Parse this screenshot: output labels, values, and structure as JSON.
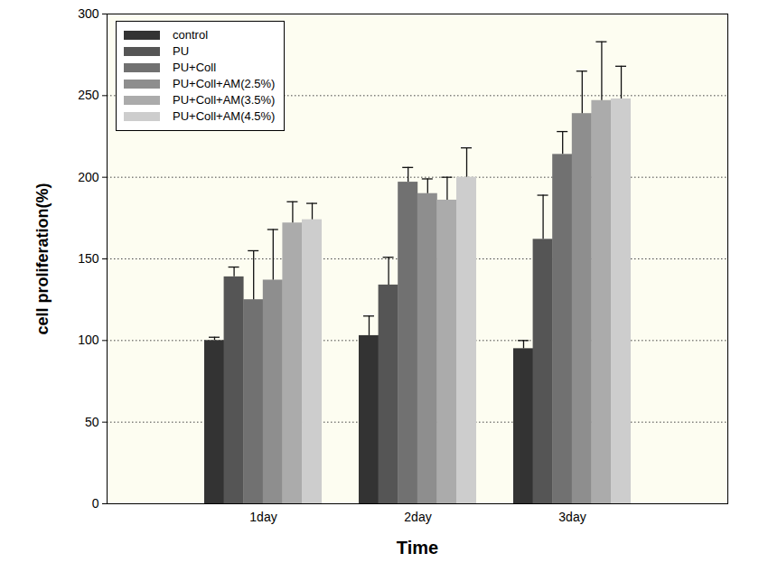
{
  "chart_data": {
    "type": "bar",
    "x_label": "Time",
    "y_label": "cell proliferation(%)",
    "categories": [
      "1day",
      "2day",
      "3day"
    ],
    "series": [
      {
        "name": "control",
        "color": "#333333",
        "values": [
          100,
          103,
          95
        ],
        "errors": [
          2,
          12,
          5
        ]
      },
      {
        "name": "PU",
        "color": "#555555",
        "values": [
          139,
          134,
          162
        ],
        "errors": [
          6,
          17,
          27
        ]
      },
      {
        "name": "PU+Coll",
        "color": "#717171",
        "values": [
          125,
          197,
          214
        ],
        "errors": [
          30,
          9,
          14
        ]
      },
      {
        "name": "PU+Coll+AM(2.5%)",
        "color": "#8e8e8e",
        "values": [
          137,
          190,
          239
        ],
        "errors": [
          31,
          9,
          26
        ]
      },
      {
        "name": "PU+Coll+AM(3.5%)",
        "color": "#ababab",
        "values": [
          172,
          186,
          247
        ],
        "errors": [
          13,
          14,
          36
        ]
      },
      {
        "name": "PU+Coll+AM(4.5%)",
        "color": "#cdcdcd",
        "values": [
          174,
          200,
          248
        ],
        "errors": [
          10,
          18,
          20
        ]
      }
    ],
    "ylim": [
      0,
      300
    ],
    "yticks": [
      0,
      50,
      100,
      150,
      200,
      250,
      300
    ],
    "grid": true,
    "legend": "upper left"
  }
}
